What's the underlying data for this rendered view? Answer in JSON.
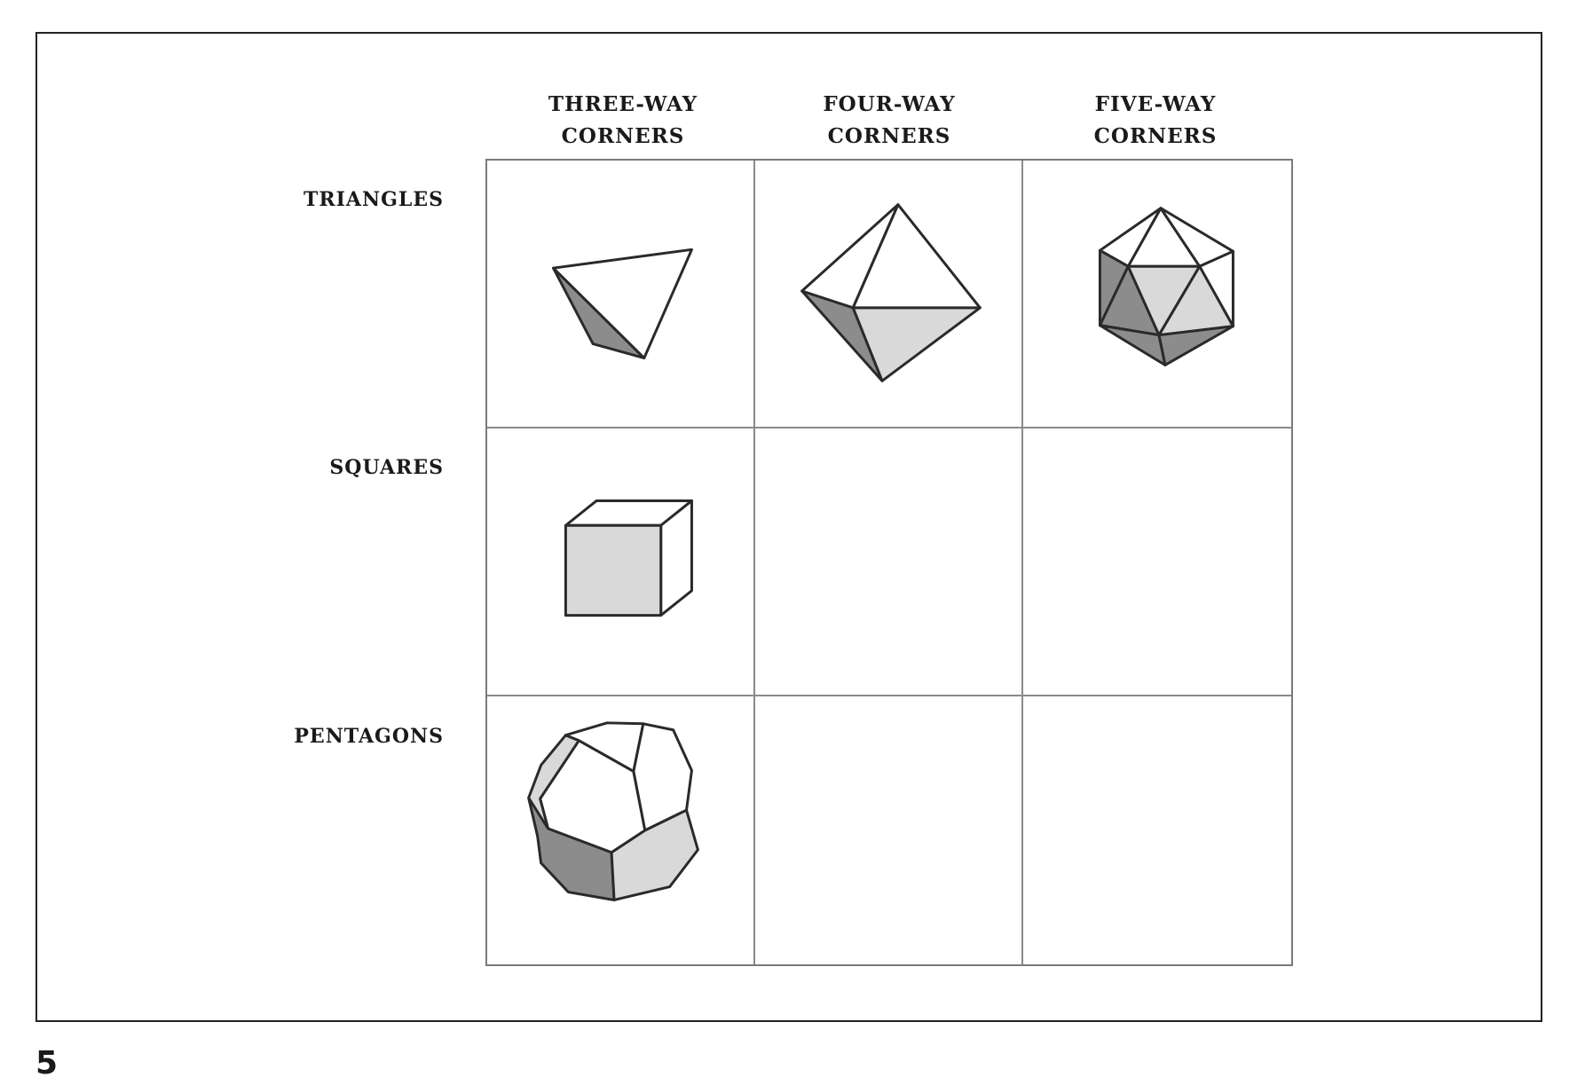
{
  "columns": [
    {
      "line1": "THREE-WAY",
      "line2": "CORNERS"
    },
    {
      "line1": "FOUR-WAY",
      "line2": "CORNERS"
    },
    {
      "line1": "FIVE-WAY",
      "line2": "CORNERS"
    }
  ],
  "rows": [
    {
      "label": "TRIANGLES"
    },
    {
      "label": "SQUARES"
    },
    {
      "label": "PENTAGONS"
    }
  ],
  "cells": {
    "triangles_three_way": "tetrahedron",
    "triangles_four_way": "octahedron",
    "triangles_five_way": "icosahedron",
    "squares_three_way": "cube",
    "pentagons_three_way": "dodecahedron"
  },
  "colors": {
    "line": "#2a2a2a",
    "light_fill": "#d9d9d9",
    "dark_fill": "#8c8c8c",
    "grid": "#8a8a8a"
  },
  "page_number": "5"
}
